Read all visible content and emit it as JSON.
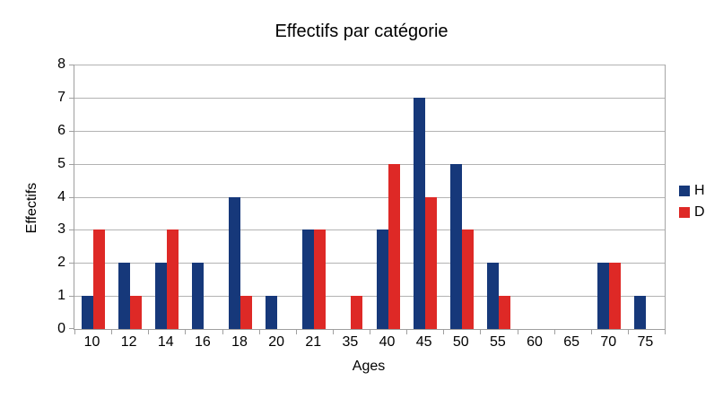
{
  "chart_data": {
    "type": "bar",
    "title": "Effectifs par catégorie",
    "xlabel": "Ages",
    "ylabel": "Effectifs",
    "categories": [
      "10",
      "12",
      "14",
      "16",
      "18",
      "20",
      "21",
      "35",
      "40",
      "45",
      "50",
      "55",
      "60",
      "65",
      "70",
      "75"
    ],
    "series": [
      {
        "name": "H",
        "color": "#16387a",
        "values": [
          1,
          2,
          2,
          2,
          4,
          1,
          3,
          0,
          3,
          7,
          5,
          2,
          0,
          0,
          2,
          1
        ]
      },
      {
        "name": "D",
        "color": "#de2926",
        "values": [
          3,
          1,
          3,
          0,
          1,
          0,
          3,
          1,
          5,
          4,
          3,
          1,
          0,
          0,
          2,
          0
        ]
      }
    ],
    "ylim": [
      0,
      8
    ],
    "ytick_step": 1,
    "grid": true,
    "legend_position": "right",
    "colors": {
      "background": "#ffffff",
      "gridline": "#b3b3b3",
      "axis": "#9f9f9f",
      "text": "#000000"
    }
  }
}
